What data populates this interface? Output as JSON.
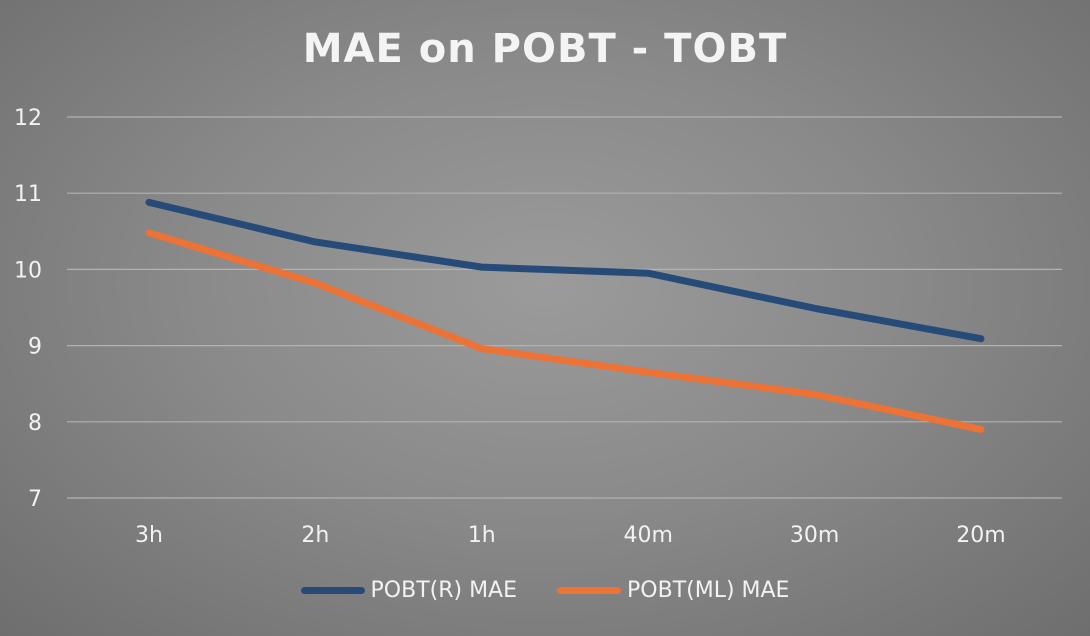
{
  "chart_data": {
    "type": "line",
    "title": "MAE on POBT - TOBT",
    "xlabel": "",
    "ylabel": "",
    "categories": [
      "3h",
      "2h",
      "1h",
      "40m",
      "30m",
      "20m"
    ],
    "ylim": [
      7,
      12
    ],
    "yticks": [
      7,
      8,
      9,
      10,
      11,
      12
    ],
    "grid": true,
    "legend_position": "bottom",
    "series": [
      {
        "name": "POBT(R) MAE",
        "color": "#264b78",
        "values": [
          10.88,
          10.36,
          10.03,
          9.95,
          9.49,
          9.09
        ]
      },
      {
        "name": "POBT(ML) MAE",
        "color": "#ec7236",
        "values": [
          10.48,
          9.82,
          8.96,
          8.65,
          8.36,
          7.9
        ]
      }
    ]
  }
}
